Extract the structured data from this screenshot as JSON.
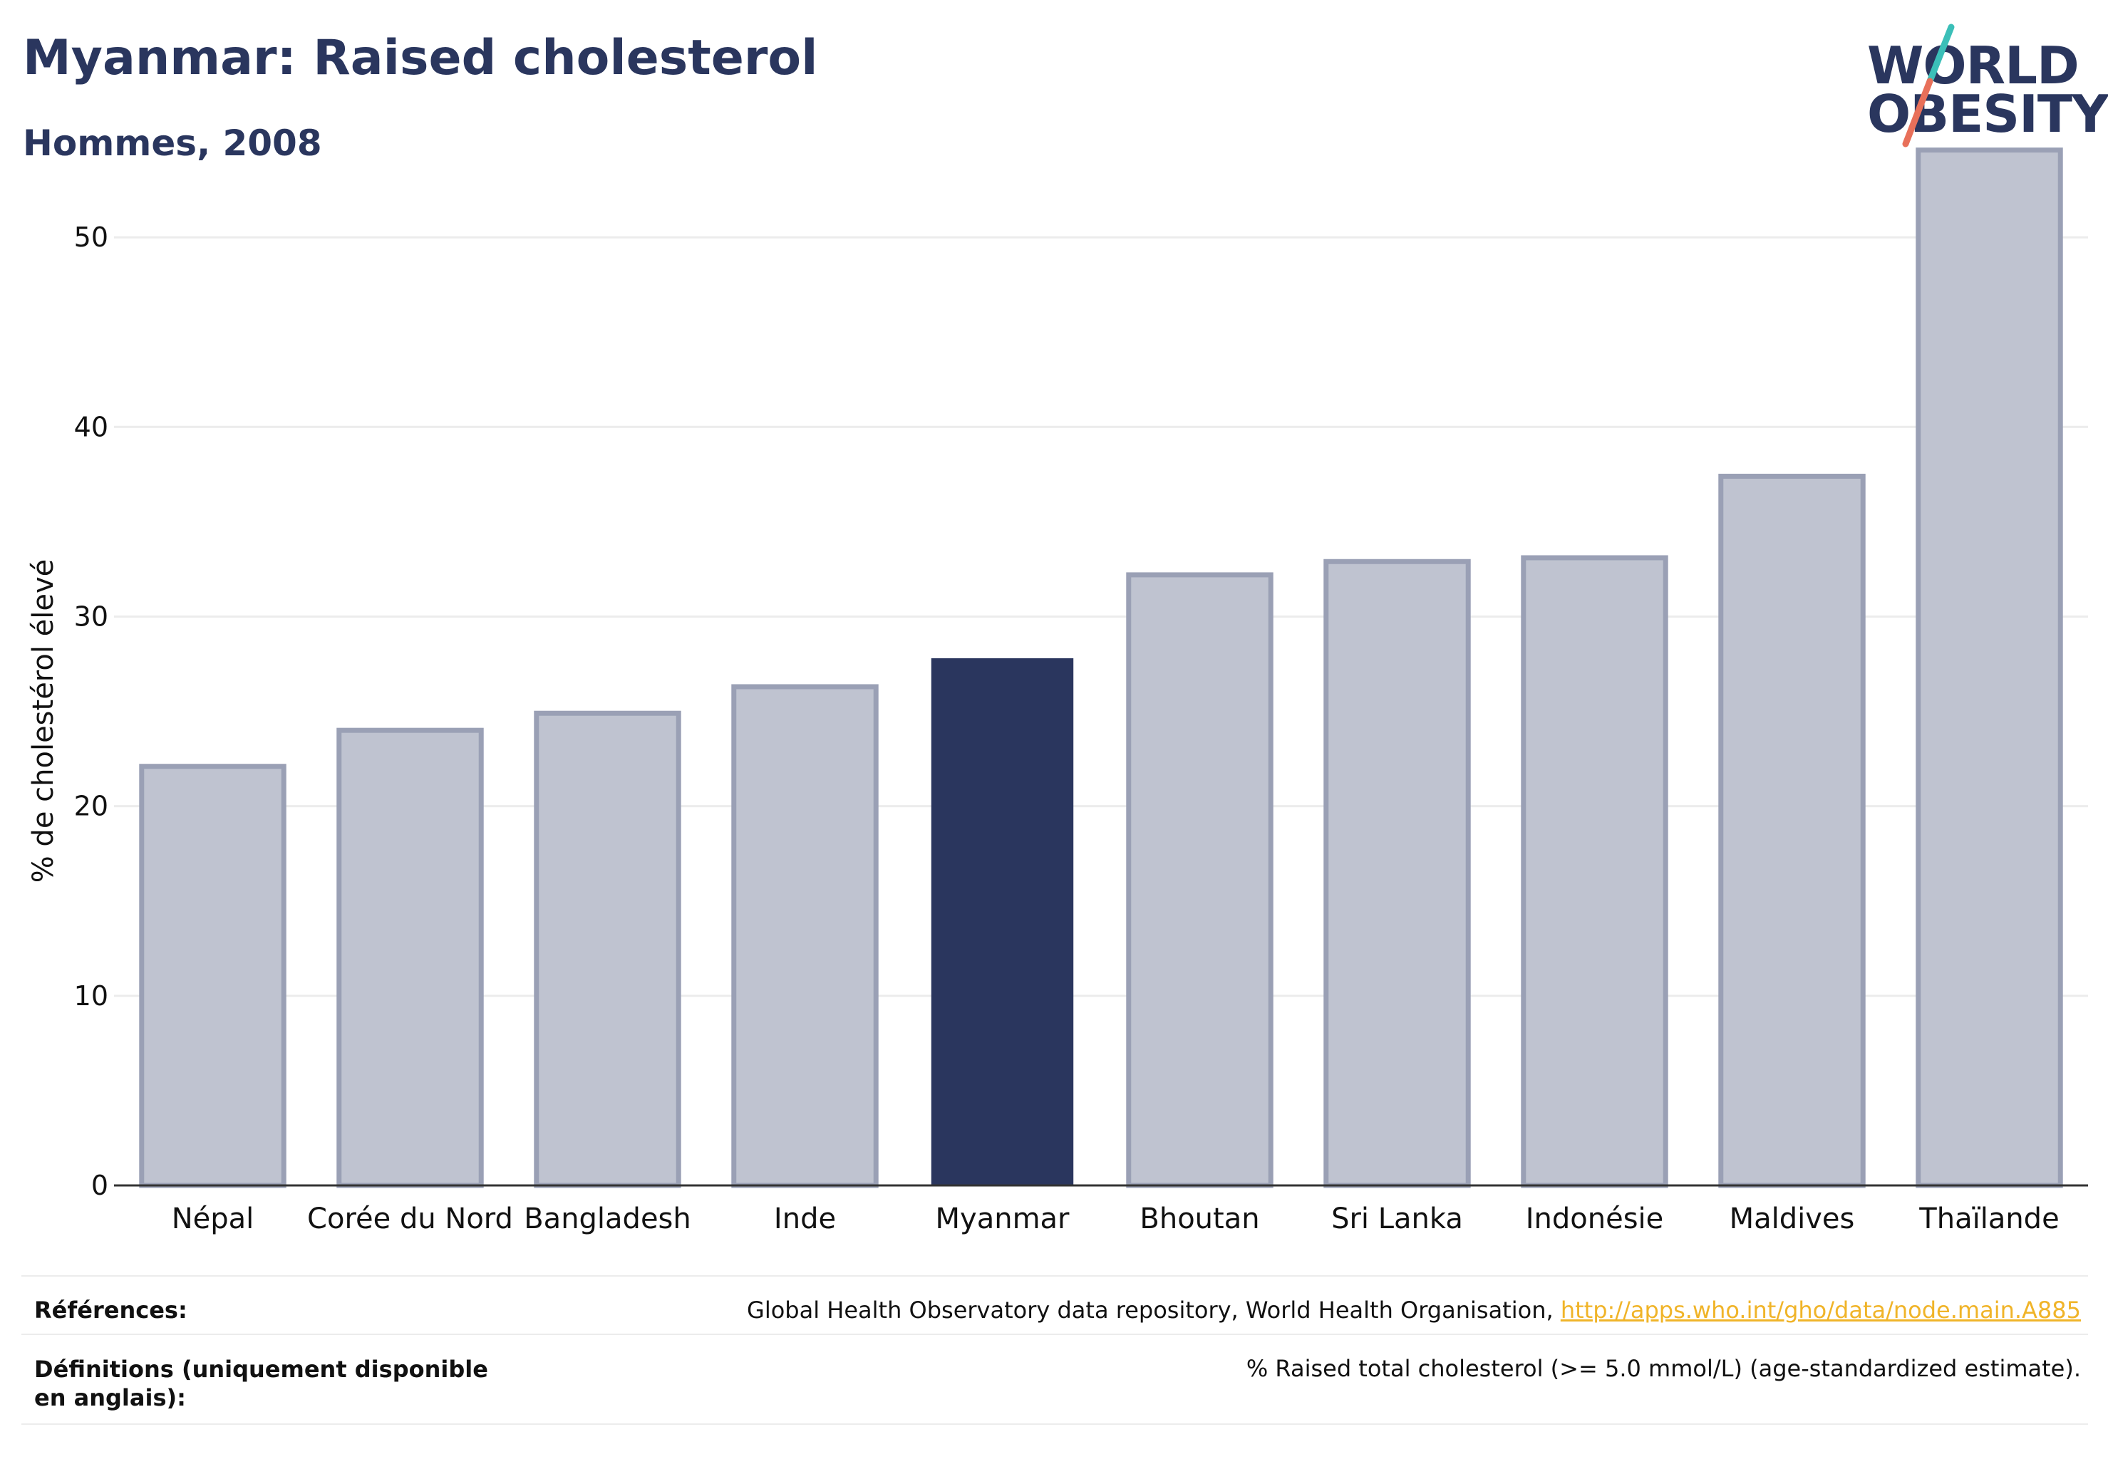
{
  "title": "Myanmar: Raised cholesterol",
  "subtitle": "Hommes, 2008",
  "logo": {
    "line1": "WORLD",
    "line2": "OBESITY"
  },
  "chart_data": {
    "type": "bar",
    "categories": [
      "Népal",
      "Corée du Nord",
      "Bangladesh",
      "Inde",
      "Myanmar",
      "Bhoutan",
      "Sri Lanka",
      "Indonésie",
      "Maldives",
      "Thaïlande"
    ],
    "values": [
      22.1,
      24.0,
      24.9,
      26.3,
      27.8,
      32.2,
      32.9,
      33.1,
      37.4,
      54.6
    ],
    "highlight": "Myanmar",
    "ylabel": "% de cholestérol élevé",
    "xlabel": "",
    "ylim": [
      0,
      55
    ],
    "yticks": [
      0,
      10,
      20,
      30,
      40,
      50
    ],
    "grid": true,
    "colors": {
      "highlight": "#2a365e",
      "others": "#bfc3d0",
      "others_border": "#9aa0b5",
      "grid": "#ececec",
      "axis": "#333333"
    }
  },
  "footer": {
    "references_label": "Références:",
    "references_text": "Global Health Observatory data repository, World Health Organisation, ",
    "references_link": "http://apps.who.int/gho/data/node.main.A885",
    "definitions_label": "Définitions (uniquement disponible en anglais):",
    "definitions_text": "% Raised total cholesterol (>= 5.0 mmol/L) (age-standardized estimate)."
  }
}
